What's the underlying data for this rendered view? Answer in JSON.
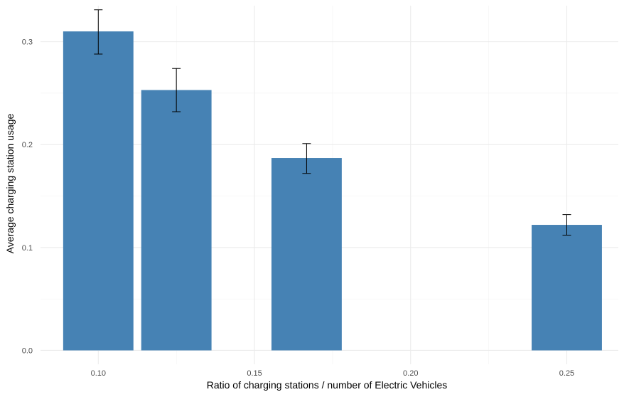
{
  "chart_data": {
    "type": "bar",
    "title": "",
    "xlabel": "Ratio of charging stations / number of Electric Vehicles",
    "ylabel": "Average charging station usage",
    "x": [
      0.1,
      0.125,
      0.1667,
      0.25
    ],
    "values": [
      0.31,
      0.253,
      0.187,
      0.122
    ],
    "error_low": [
      0.288,
      0.232,
      0.172,
      0.112
    ],
    "error_high": [
      0.331,
      0.274,
      0.201,
      0.132
    ],
    "bar_width": 0.0225,
    "xlim": [
      0.0815,
      0.2665
    ],
    "ylim": [
      -0.0135,
      0.335
    ],
    "x_ticks": [
      0.1,
      0.15,
      0.2,
      0.25
    ],
    "x_tick_labels": [
      "0.10",
      "0.15",
      "0.20",
      "0.25"
    ],
    "y_ticks": [
      0.0,
      0.1,
      0.2,
      0.3
    ],
    "y_tick_labels": [
      "0.0",
      "0.1",
      "0.2",
      "0.3"
    ],
    "bar_color": "#4682b4",
    "grid": true,
    "legend": "none"
  }
}
